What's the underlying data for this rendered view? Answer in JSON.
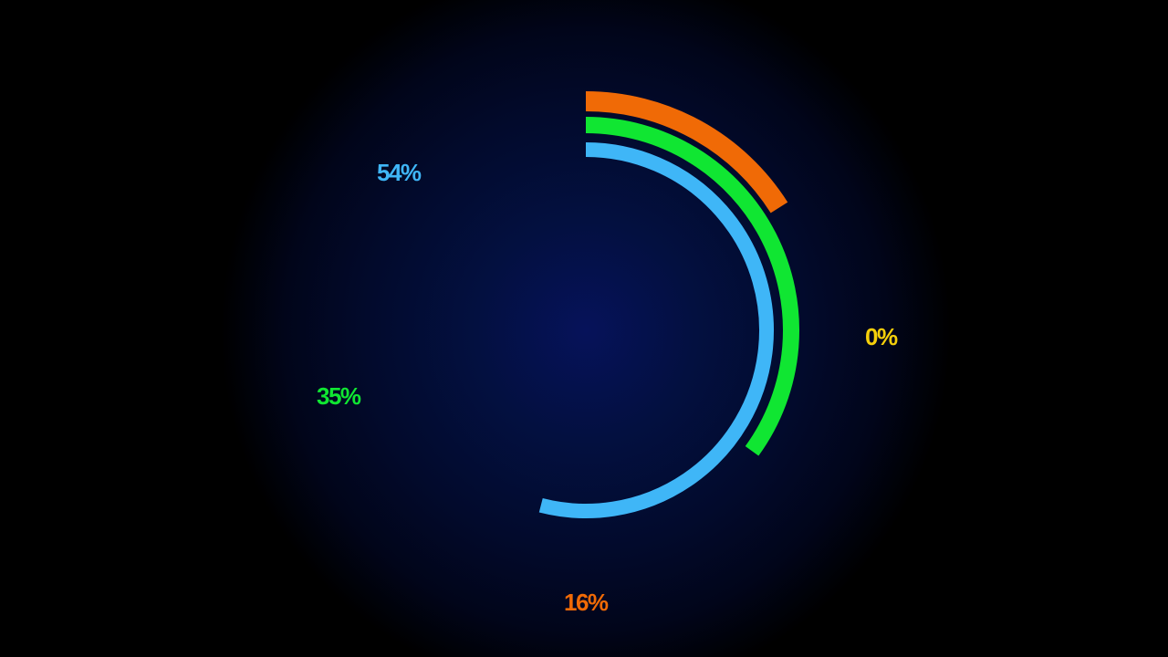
{
  "chart_data": {
    "type": "radial-bar",
    "unit": "%",
    "max": 100,
    "start": "top",
    "direction": "clockwise",
    "series": [
      {
        "label": "54%",
        "value": 54,
        "color": "#3fb6f7"
      },
      {
        "label": "35%",
        "value": 35,
        "color": "#10e632"
      },
      {
        "label": "16%",
        "value": 16,
        "color": "#f06a06"
      },
      {
        "label": "0%",
        "value": 0,
        "color": "#f5cf0a"
      }
    ]
  },
  "background": {
    "center": "#06125a",
    "edge": "#000000"
  }
}
